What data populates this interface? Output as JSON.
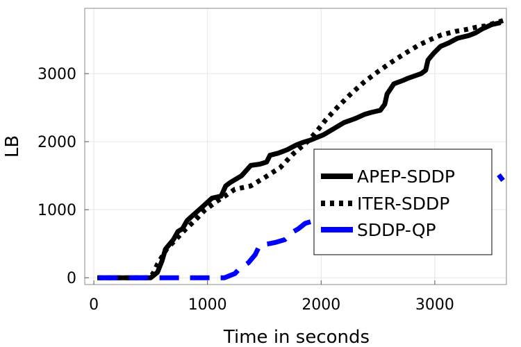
{
  "chart_data": {
    "type": "line",
    "title": "",
    "xlabel": "Time in seconds",
    "ylabel": "LB",
    "xlim": [
      -80,
      3630
    ],
    "ylim": [
      -100,
      3960
    ],
    "xticks": [
      0,
      1000,
      2000,
      3000
    ],
    "yticks": [
      0,
      1000,
      2000,
      3000
    ],
    "grid": true,
    "legend_position": "right",
    "series": [
      {
        "name": "APEP-SDDP",
        "color": "#000000",
        "style": "solid",
        "points": [
          [
            30,
            0
          ],
          [
            380,
            0
          ],
          [
            500,
            0
          ],
          [
            560,
            80
          ],
          [
            600,
            250
          ],
          [
            630,
            420
          ],
          [
            700,
            560
          ],
          [
            740,
            680
          ],
          [
            780,
            720
          ],
          [
            820,
            840
          ],
          [
            860,
            900
          ],
          [
            960,
            1050
          ],
          [
            1040,
            1170
          ],
          [
            1120,
            1200
          ],
          [
            1160,
            1350
          ],
          [
            1200,
            1400
          ],
          [
            1300,
            1500
          ],
          [
            1380,
            1650
          ],
          [
            1460,
            1670
          ],
          [
            1520,
            1700
          ],
          [
            1550,
            1800
          ],
          [
            1620,
            1830
          ],
          [
            1700,
            1880
          ],
          [
            1780,
            1950
          ],
          [
            1840,
            1990
          ],
          [
            1900,
            2020
          ],
          [
            1960,
            2060
          ],
          [
            2020,
            2100
          ],
          [
            2100,
            2180
          ],
          [
            2200,
            2280
          ],
          [
            2300,
            2340
          ],
          [
            2380,
            2400
          ],
          [
            2440,
            2430
          ],
          [
            2520,
            2460
          ],
          [
            2560,
            2550
          ],
          [
            2580,
            2700
          ],
          [
            2640,
            2850
          ],
          [
            2720,
            2900
          ],
          [
            2760,
            2930
          ],
          [
            2880,
            3000
          ],
          [
            2920,
            3050
          ],
          [
            2940,
            3200
          ],
          [
            2990,
            3300
          ],
          [
            3050,
            3400
          ],
          [
            3120,
            3450
          ],
          [
            3200,
            3520
          ],
          [
            3300,
            3560
          ],
          [
            3360,
            3600
          ],
          [
            3420,
            3660
          ],
          [
            3500,
            3720
          ],
          [
            3580,
            3750
          ]
        ]
      },
      {
        "name": "ITER-SDDP",
        "color": "#000000",
        "style": "dotted",
        "points": [
          [
            40,
            0
          ],
          [
            480,
            0
          ],
          [
            520,
            60
          ],
          [
            560,
            200
          ],
          [
            640,
            420
          ],
          [
            720,
            560
          ],
          [
            800,
            700
          ],
          [
            900,
            860
          ],
          [
            980,
            1000
          ],
          [
            1080,
            1120
          ],
          [
            1180,
            1230
          ],
          [
            1240,
            1300
          ],
          [
            1380,
            1350
          ],
          [
            1500,
            1470
          ],
          [
            1640,
            1620
          ],
          [
            1760,
            1830
          ],
          [
            1880,
            2000
          ],
          [
            1960,
            2150
          ],
          [
            2040,
            2320
          ],
          [
            2140,
            2500
          ],
          [
            2260,
            2700
          ],
          [
            2380,
            2880
          ],
          [
            2500,
            3030
          ],
          [
            2620,
            3170
          ],
          [
            2740,
            3300
          ],
          [
            2860,
            3420
          ],
          [
            2960,
            3500
          ],
          [
            3060,
            3570
          ],
          [
            3180,
            3620
          ],
          [
            3280,
            3650
          ],
          [
            3360,
            3680
          ],
          [
            3440,
            3700
          ],
          [
            3520,
            3740
          ],
          [
            3600,
            3780
          ]
        ]
      },
      {
        "name": "SDDP-QP",
        "color": "#0000ff",
        "style": "dashed",
        "points": [
          [
            40,
            0
          ],
          [
            820,
            0
          ],
          [
            1150,
            0
          ],
          [
            1240,
            60
          ],
          [
            1280,
            130
          ],
          [
            1360,
            220
          ],
          [
            1420,
            340
          ],
          [
            1460,
            480
          ],
          [
            1540,
            500
          ],
          [
            1600,
            520
          ],
          [
            1680,
            560
          ],
          [
            1760,
            680
          ],
          [
            1800,
            720
          ],
          [
            1860,
            800
          ],
          [
            1980,
            860
          ],
          [
            2080,
            900
          ],
          [
            2200,
            960
          ],
          [
            2400,
            1060
          ],
          [
            2600,
            1160
          ],
          [
            2800,
            1260
          ],
          [
            3000,
            1340
          ],
          [
            3200,
            1400
          ],
          [
            3400,
            1460
          ],
          [
            3560,
            1520
          ],
          [
            3600,
            1430
          ]
        ]
      }
    ]
  }
}
